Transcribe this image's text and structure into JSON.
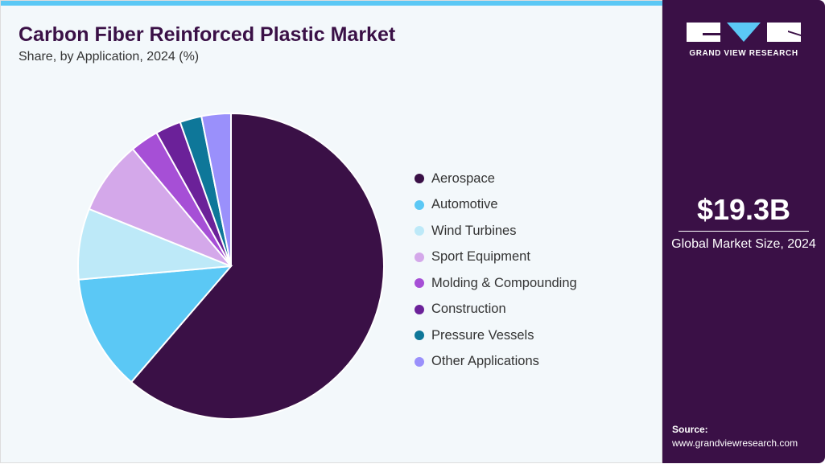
{
  "header": {
    "title": "Carbon Fiber Reinforced Plastic Market",
    "subtitle": "Share, by Application, 2024 (%)"
  },
  "chart_data": {
    "type": "pie",
    "title": "Carbon Fiber Reinforced Plastic Market",
    "subtitle": "Share, by Application, 2024 (%)",
    "categories": [
      "Aerospace",
      "Automotive",
      "Wind Turbines",
      "Sport Equipment",
      "Molding & Compounding",
      "Construction",
      "Pressure Vessels",
      "Other Applications"
    ],
    "values": [
      61.3,
      12.3,
      7.5,
      7.8,
      3.0,
      2.7,
      2.3,
      3.1
    ],
    "colors": [
      "#3a1046",
      "#5bc8f5",
      "#bde9f8",
      "#d4a8ea",
      "#a64fd6",
      "#6b2199",
      "#0e7799",
      "#9a90fb"
    ],
    "legend": "right"
  },
  "sidebar": {
    "logo_text": "GRAND VIEW RESEARCH",
    "market_size": "$19.3B",
    "market_size_label": "Global Market Size, 2024",
    "source_label": "Source:",
    "source_url": "www.grandviewresearch.com"
  }
}
